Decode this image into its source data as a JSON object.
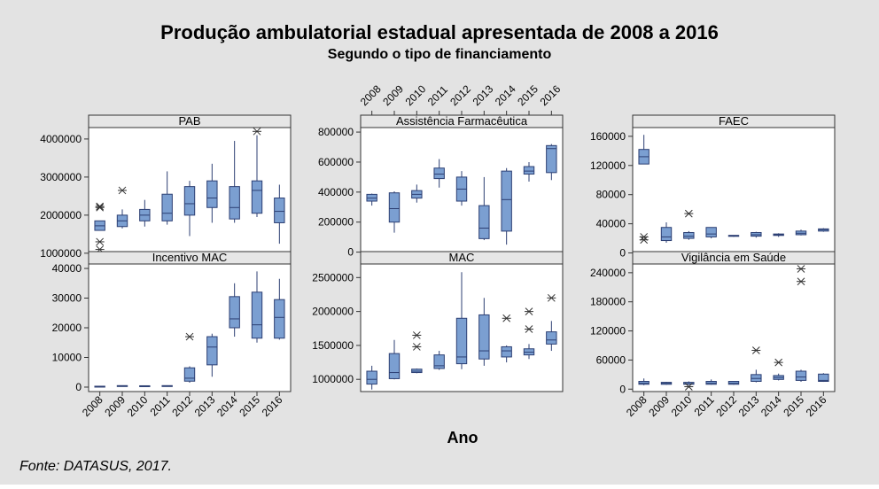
{
  "title": "Produção ambulatorial estadual apresentada de 2008 a 2016",
  "subtitle": "Segundo o tipo de financiamento",
  "xlabel": "Ano",
  "source": "Fonte: DATASUS, 2017.",
  "colors": {
    "box_fill": "#7b9fd1",
    "box_stroke": "#2c3f73",
    "panel_header": "#e6e6e6",
    "background": "#e3e3e3"
  },
  "chart_data": {
    "type": "boxplot",
    "categories": [
      "2008",
      "2009",
      "2010",
      "2011",
      "2012",
      "2013",
      "2014",
      "2015",
      "2016"
    ],
    "panels": [
      {
        "name": "PAB",
        "yticks": [
          1000000,
          2000000,
          3000000,
          4000000
        ],
        "yticklabels": [
          "1000000",
          "2000000",
          "3000000",
          "4000000"
        ],
        "ylim": [
          950000,
          4300000
        ],
        "boxes": [
          {
            "min": 1600000,
            "q1": 1600000,
            "med": 1720000,
            "q3": 1850000,
            "max": 1850000,
            "outliers": [
              2230000,
              2200000,
              1300000,
              1100000
            ]
          },
          {
            "min": 1650000,
            "q1": 1700000,
            "med": 1850000,
            "q3": 2000000,
            "max": 2150000,
            "outliers": [
              2650000
            ]
          },
          {
            "min": 1700000,
            "q1": 1850000,
            "med": 2000000,
            "q3": 2150000,
            "max": 2400000,
            "outliers": []
          },
          {
            "min": 1750000,
            "q1": 1850000,
            "med": 2050000,
            "q3": 2550000,
            "max": 3150000,
            "outliers": []
          },
          {
            "min": 1450000,
            "q1": 2000000,
            "med": 2300000,
            "q3": 2750000,
            "max": 2900000,
            "outliers": []
          },
          {
            "min": 1800000,
            "q1": 2200000,
            "med": 2450000,
            "q3": 2900000,
            "max": 3350000,
            "outliers": []
          },
          {
            "min": 1800000,
            "q1": 1900000,
            "med": 2200000,
            "q3": 2750000,
            "max": 3950000,
            "outliers": []
          },
          {
            "min": 1950000,
            "q1": 2050000,
            "med": 2650000,
            "q3": 2900000,
            "max": 4100000,
            "outliers": [
              4200000
            ]
          },
          {
            "min": 1250000,
            "q1": 1800000,
            "med": 2100000,
            "q3": 2450000,
            "max": 2800000,
            "outliers": []
          }
        ]
      },
      {
        "name": "Assistência Farmacêutica",
        "yticks": [
          0,
          200000,
          400000,
          600000,
          800000
        ],
        "yticklabels": [
          "0",
          "200000",
          "400000",
          "600000",
          "800000"
        ],
        "ylim": [
          -20000,
          830000
        ],
        "boxes": [
          {
            "min": 310000,
            "q1": 340000,
            "med": 360000,
            "q3": 385000,
            "max": 390000,
            "outliers": []
          },
          {
            "min": 130000,
            "q1": 200000,
            "med": 290000,
            "q3": 395000,
            "max": 405000,
            "outliers": []
          },
          {
            "min": 330000,
            "q1": 360000,
            "med": 385000,
            "q3": 410000,
            "max": 450000,
            "outliers": []
          },
          {
            "min": 430000,
            "q1": 490000,
            "med": 520000,
            "q3": 560000,
            "max": 620000,
            "outliers": []
          },
          {
            "min": 310000,
            "q1": 340000,
            "med": 420000,
            "q3": 500000,
            "max": 540000,
            "outliers": []
          },
          {
            "min": 80000,
            "q1": 90000,
            "med": 160000,
            "q3": 310000,
            "max": 500000,
            "outliers": []
          },
          {
            "min": 50000,
            "q1": 140000,
            "med": 350000,
            "q3": 540000,
            "max": 560000,
            "outliers": []
          },
          {
            "min": 470000,
            "q1": 520000,
            "med": 540000,
            "q3": 570000,
            "max": 600000,
            "outliers": []
          },
          {
            "min": 480000,
            "q1": 530000,
            "med": 690000,
            "q3": 710000,
            "max": 720000,
            "outliers": []
          }
        ]
      },
      {
        "name": "FAEC",
        "yticks": [
          0,
          40000,
          80000,
          120000,
          160000
        ],
        "yticklabels": [
          "0",
          "40000",
          "80000",
          "120000",
          "160000"
        ],
        "ylim": [
          -3000,
          172000
        ],
        "boxes": [
          {
            "min": 122000,
            "q1": 122000,
            "med": 132000,
            "q3": 142000,
            "max": 162000,
            "outliers": [
              22000,
              18000
            ]
          },
          {
            "min": 14000,
            "q1": 17000,
            "med": 22000,
            "q3": 35000,
            "max": 42000,
            "outliers": []
          },
          {
            "min": 18000,
            "q1": 20000,
            "med": 23000,
            "q3": 28000,
            "max": 30000,
            "outliers": [
              54000
            ]
          },
          {
            "min": 20000,
            "q1": 22000,
            "med": 26000,
            "q3": 35000,
            "max": 35000,
            "outliers": []
          },
          {
            "min": 22000,
            "q1": 23000,
            "med": 24000,
            "q3": 24000,
            "max": 24000,
            "outliers": []
          },
          {
            "min": 21000,
            "q1": 23000,
            "med": 25000,
            "q3": 28000,
            "max": 29000,
            "outliers": []
          },
          {
            "min": 22000,
            "q1": 24000,
            "med": 25000,
            "q3": 26000,
            "max": 27000,
            "outliers": []
          },
          {
            "min": 24000,
            "q1": 25000,
            "med": 27000,
            "q3": 30000,
            "max": 32000,
            "outliers": []
          },
          {
            "min": 29000,
            "q1": 30000,
            "med": 32000,
            "q3": 33000,
            "max": 34000,
            "outliers": []
          }
        ]
      },
      {
        "name": "Incentivo MAC",
        "yticks": [
          0,
          10000,
          20000,
          30000,
          40000
        ],
        "yticklabels": [
          "0",
          "10000",
          "20000",
          "30000",
          "40000"
        ],
        "ylim": [
          -1500,
          41500
        ],
        "boxes": [
          {
            "min": 0,
            "q1": 100,
            "med": 200,
            "q3": 300,
            "max": 400,
            "outliers": []
          },
          {
            "min": 200,
            "q1": 300,
            "med": 400,
            "q3": 500,
            "max": 600,
            "outliers": []
          },
          {
            "min": 300,
            "q1": 350,
            "med": 400,
            "q3": 450,
            "max": 500,
            "outliers": []
          },
          {
            "min": 200,
            "q1": 300,
            "med": 400,
            "q3": 500,
            "max": 600,
            "outliers": []
          },
          {
            "min": 1500,
            "q1": 2000,
            "med": 3000,
            "q3": 6500,
            "max": 7000,
            "outliers": [
              17000
            ]
          },
          {
            "min": 3500,
            "q1": 7500,
            "med": 13500,
            "q3": 17000,
            "max": 18000,
            "outliers": []
          },
          {
            "min": 17000,
            "q1": 20000,
            "med": 23000,
            "q3": 30500,
            "max": 35000,
            "outliers": []
          },
          {
            "min": 15000,
            "q1": 16500,
            "med": 21000,
            "q3": 32000,
            "max": 39000,
            "outliers": []
          },
          {
            "min": 16000,
            "q1": 16500,
            "med": 23500,
            "q3": 29500,
            "max": 36500,
            "outliers": []
          }
        ]
      },
      {
        "name": "MAC",
        "yticks": [
          1000000,
          1500000,
          2000000,
          2500000
        ],
        "yticklabels": [
          "1000000",
          "1500000",
          "2000000",
          "2500000"
        ],
        "ylim": [
          820000,
          2700000
        ],
        "boxes": [
          {
            "min": 850000,
            "q1": 930000,
            "med": 1000000,
            "q3": 1120000,
            "max": 1200000,
            "outliers": []
          },
          {
            "min": 1000000,
            "q1": 1010000,
            "med": 1100000,
            "q3": 1380000,
            "max": 1580000,
            "outliers": []
          },
          {
            "min": 1090000,
            "q1": 1100000,
            "med": 1120000,
            "q3": 1150000,
            "max": 1160000,
            "outliers": [
              1650000,
              1480000
            ]
          },
          {
            "min": 1140000,
            "q1": 1160000,
            "med": 1200000,
            "q3": 1360000,
            "max": 1420000,
            "outliers": []
          },
          {
            "min": 1150000,
            "q1": 1230000,
            "med": 1330000,
            "q3": 1900000,
            "max": 2580000,
            "outliers": []
          },
          {
            "min": 1200000,
            "q1": 1300000,
            "med": 1420000,
            "q3": 1950000,
            "max": 2200000,
            "outliers": []
          },
          {
            "min": 1250000,
            "q1": 1330000,
            "med": 1420000,
            "q3": 1480000,
            "max": 1500000,
            "outliers": [
              1900000
            ]
          },
          {
            "min": 1300000,
            "q1": 1360000,
            "med": 1400000,
            "q3": 1450000,
            "max": 1520000,
            "outliers": [
              2000000,
              1740000
            ]
          },
          {
            "min": 1420000,
            "q1": 1520000,
            "med": 1580000,
            "q3": 1700000,
            "max": 1860000,
            "outliers": [
              2200000
            ]
          }
        ]
      },
      {
        "name": "Vigilância em Saúde",
        "yticks": [
          0,
          60000,
          120000,
          180000,
          240000
        ],
        "yticklabels": [
          "0",
          "60000",
          "120000",
          "180000",
          "240000"
        ],
        "ylim": [
          -5000,
          258000
        ],
        "boxes": [
          {
            "min": 8000,
            "q1": 10000,
            "med": 12000,
            "q3": 16000,
            "max": 22000,
            "outliers": []
          },
          {
            "min": 9000,
            "q1": 10000,
            "med": 12000,
            "q3": 14000,
            "max": 15000,
            "outliers": []
          },
          {
            "min": 9000,
            "q1": 10000,
            "med": 11000,
            "q3": 14000,
            "max": 16000,
            "outliers": [
              5000
            ]
          },
          {
            "min": 9000,
            "q1": 10000,
            "med": 12000,
            "q3": 16000,
            "max": 20000,
            "outliers": []
          },
          {
            "min": 9000,
            "q1": 10000,
            "med": 12000,
            "q3": 16000,
            "max": 17000,
            "outliers": []
          },
          {
            "min": 14000,
            "q1": 16000,
            "med": 22000,
            "q3": 30000,
            "max": 40000,
            "outliers": [
              80000
            ]
          },
          {
            "min": 18000,
            "q1": 20000,
            "med": 24000,
            "q3": 28000,
            "max": 32000,
            "outliers": [
              55000
            ]
          },
          {
            "min": 15000,
            "q1": 18000,
            "med": 25000,
            "q3": 37000,
            "max": 40000,
            "outliers": [
              248000,
              222000
            ]
          },
          {
            "min": 15000,
            "q1": 16000,
            "med": 18000,
            "q3": 31000,
            "max": 33000,
            "outliers": []
          }
        ]
      }
    ]
  }
}
